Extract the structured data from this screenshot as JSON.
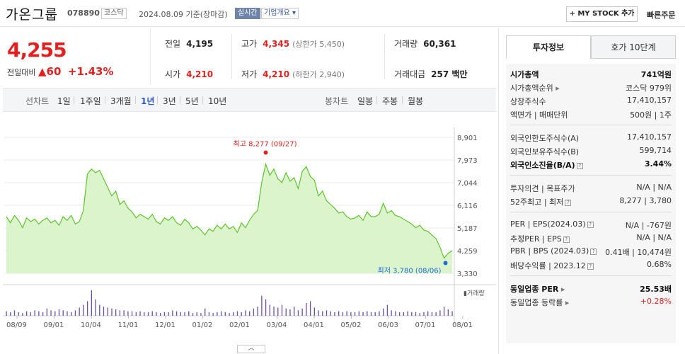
{
  "header": {
    "stock_name": "가온그룹",
    "stock_code": "078890",
    "market": "코스닥",
    "date": "2024.08.09",
    "basis": "기준(장마감)",
    "realtime": "실시간",
    "company_info": "기업개요 ▾",
    "mystock_button": "+ MY STOCK 추가",
    "quick_order": "빠른주문"
  },
  "quote": {
    "price": "4,255",
    "change_label": "전일대비",
    "change_arrow": "▲",
    "change_value": "60",
    "change_pct": "+1.43%",
    "prev_close_label": "전일",
    "prev_close": "4,195",
    "open_label": "시가",
    "open": "4,210",
    "high_label": "고가",
    "high": "4,345",
    "upper_limit": "(상한가 5,450)",
    "low_label": "저가",
    "low": "4,210",
    "lower_limit": "(하한가 2,940)",
    "volume_label": "거래량",
    "volume": "60,361",
    "value_label": "거래대금",
    "value": "257 백만"
  },
  "periods": {
    "line_label": "선차트",
    "line_tabs": [
      "1일",
      "1주일",
      "3개월",
      "1년",
      "3년",
      "5년",
      "10년"
    ],
    "active": "1년",
    "candle_label": "봉차트",
    "candle_tabs": [
      "일봉",
      "주봉",
      "월봉"
    ]
  },
  "chart_data": {
    "type": "area",
    "title": "",
    "x_ticks": [
      "08/09",
      "09/01",
      "10/04",
      "11/01",
      "12/01",
      "01/02",
      "02/01",
      "03/04",
      "04/01",
      "05/02",
      "06/03",
      "07/01",
      "08/01"
    ],
    "y_ticks": [
      "8,901",
      "7,973",
      "7,044",
      "6,116",
      "5,187",
      "4,259",
      "3,330"
    ],
    "ylim": [
      3330,
      8901
    ],
    "high_annotation": "최고 8,277 (09/27)",
    "low_annotation": "최저 3,780 (08/06)",
    "volume_label": "거래량",
    "values": [
      5650,
      5400,
      5700,
      5500,
      5200,
      5600,
      5450,
      5550,
      5350,
      5500,
      5600,
      5400,
      5500,
      5300,
      5650,
      5500,
      5700,
      5350,
      5450,
      5900,
      7400,
      7600,
      7450,
      7550,
      7200,
      6850,
      6500,
      6700,
      6150,
      6300,
      6000,
      5850,
      5600,
      5750,
      5650,
      5550,
      5750,
      5450,
      5350,
      5600,
      5500,
      5650,
      5400,
      5300,
      5550,
      5400,
      5150,
      5250,
      5100,
      4900,
      5150,
      5050,
      5300,
      5150,
      5350,
      5150,
      5250,
      5000,
      5400,
      5200,
      5500,
      5750,
      5900,
      7050,
      7800,
      7350,
      7600,
      7200,
      7050,
      7450,
      7100,
      7250,
      6800,
      7500,
      7700,
      7300,
      7150,
      6500,
      6700,
      6300,
      6150,
      6000,
      5800,
      5850,
      5650,
      5550,
      5600,
      5700,
      5500,
      5850,
      5650,
      5650,
      5750,
      6200,
      5800,
      5900,
      5700,
      5650,
      5550,
      5450,
      5350,
      5200,
      5300,
      5100,
      5050,
      4900,
      4750,
      4400,
      3950,
      4150,
      4255
    ],
    "volumes": [
      5,
      4,
      6,
      4,
      3,
      5,
      4,
      6,
      5,
      4,
      8,
      6,
      5,
      7,
      6,
      5,
      4,
      6,
      9,
      12,
      16,
      28,
      18,
      12,
      10,
      9,
      8,
      7,
      6,
      6,
      5,
      5,
      4,
      5,
      4,
      4,
      5,
      4,
      3,
      4,
      4,
      6,
      5,
      4,
      4,
      5,
      3,
      4,
      3,
      8,
      4,
      3,
      4,
      5,
      4,
      3,
      4,
      5,
      4,
      6,
      5,
      8,
      10,
      22,
      18,
      12,
      10,
      9,
      12,
      8,
      7,
      10,
      6,
      8,
      14,
      16,
      9,
      6,
      5,
      6,
      5,
      4,
      5,
      4,
      5,
      4,
      4,
      5,
      4,
      5,
      4,
      4,
      5,
      8,
      12,
      6,
      5,
      4,
      4,
      5,
      4,
      4,
      3,
      4,
      5,
      4,
      4,
      6,
      10,
      7,
      5
    ]
  },
  "right_panel": {
    "tab_active": "투자정보",
    "tab_other": "호가 10단계",
    "rows": [
      {
        "label": "시가총액",
        "value": "741억원"
      },
      {
        "label": "시가총액순위",
        "value": "코스닥 979위"
      },
      {
        "label": "상장주식수",
        "value": "17,410,157"
      },
      {
        "label": "액면가 | 매매단위",
        "value": "500원 | 1주"
      },
      {
        "label": "외국인한도주식수(A)",
        "value": "17,410,157"
      },
      {
        "label": "외국인보유주식수(B)",
        "value": "599,714"
      },
      {
        "label": "외국인소진율(B/A)",
        "value": "3.44%"
      },
      {
        "label": "투자의견 | 목표주가",
        "value": "N/A | N/A"
      },
      {
        "label": "52주최고 | 최저",
        "value": "8,277 | 3,780"
      },
      {
        "label": "PER | EPS(2024.03)",
        "value": "N/A | -767원"
      },
      {
        "label": "추정PER | EPS",
        "value": "N/A | N/A"
      },
      {
        "label": "PBR | BPS (2024.03)",
        "value": "0.41배 | 10,474원"
      },
      {
        "label": "배당수익률 | 2023.12",
        "value": "0.68%"
      },
      {
        "label": "동일업종 PER",
        "value": "25.53배"
      },
      {
        "label": "동일업종 등락률",
        "value": "+0.28%"
      }
    ]
  },
  "colors": {
    "up": "#e12020",
    "line": "#5cc42b",
    "fill": "#d7f3c5",
    "volume": "#6a4ea8",
    "accent": "#2f5ac6"
  }
}
